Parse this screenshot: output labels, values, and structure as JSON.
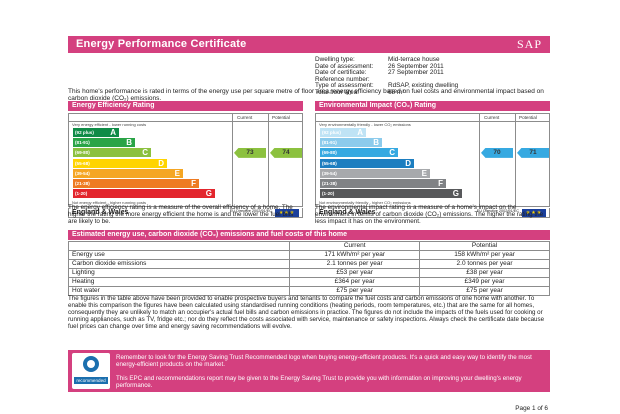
{
  "header": {
    "title": "Energy Performance Certificate",
    "logo_text": "SAP"
  },
  "address_line": "",
  "details": [
    {
      "label": "Dwelling type:",
      "value": "Mid-terrace house"
    },
    {
      "label": "Date of assessment:",
      "value": "26 September 2011"
    },
    {
      "label": "Date of certificate:",
      "value": "27 September 2011"
    },
    {
      "label": "Reference number:",
      "value": ""
    },
    {
      "label": "Type of assessment:",
      "value": "RdSAP, existing dwelling"
    },
    {
      "label": "Total floor area:",
      "value": "68 m²"
    }
  ],
  "intro": "This home's performance is rated in terms of the energy use per square metre of floor area, energy efficiency based on fuel costs and environmental impact based on carbon dioxide (CO₂) emissions.",
  "efficiency": {
    "heading": "Energy Efficiency Rating",
    "col_current": "Current",
    "col_potential": "Potential",
    "top_caption": "Very energy efficient - lower running costs",
    "bottom_caption": "Not energy efficient - higher running costs",
    "current": 73,
    "potential": 74,
    "bands": [
      {
        "range": "(92 plus)",
        "letter": "A",
        "color": "#0f8b47"
      },
      {
        "range": "(81-91)",
        "letter": "B",
        "color": "#2aa447"
      },
      {
        "range": "(69-80)",
        "letter": "C",
        "color": "#8cc13f"
      },
      {
        "range": "(55-68)",
        "letter": "D",
        "color": "#ffd400"
      },
      {
        "range": "(39-54)",
        "letter": "E",
        "color": "#f5a623"
      },
      {
        "range": "(21-38)",
        "letter": "F",
        "color": "#ee7b22"
      },
      {
        "range": "(1-20)",
        "letter": "G",
        "color": "#e3262d"
      }
    ],
    "description": "The energy efficiency rating is a measure of the overall efficiency of a home. The higher the rating the more energy efficient the home is and the lower the fuel bills are likely to be."
  },
  "environment": {
    "heading": "Environmental Impact (CO₂) Rating",
    "col_current": "Current",
    "col_potential": "Potential",
    "top_caption": "Very environmentally friendly - lower CO₂ emissions",
    "bottom_caption": "Not environmentally friendly - higher CO₂ emissions",
    "current": 70,
    "potential": 71,
    "bands": [
      {
        "range": "(92 plus)",
        "letter": "A",
        "color": "#bfe3f5"
      },
      {
        "range": "(81-91)",
        "letter": "B",
        "color": "#8ccbec"
      },
      {
        "range": "(69-80)",
        "letter": "C",
        "color": "#36a9e1"
      },
      {
        "range": "(55-68)",
        "letter": "D",
        "color": "#1d7ec0"
      },
      {
        "range": "(39-54)",
        "letter": "E",
        "color": "#a7a9ac"
      },
      {
        "range": "(21-38)",
        "letter": "F",
        "color": "#808285"
      },
      {
        "range": "(1-20)",
        "letter": "G",
        "color": "#58595b"
      }
    ],
    "description": "The environmental impact rating is a measure of a home's impact on the environment in terms of carbon dioxide (CO₂) emissions. The higher the rating the less impact it has on the environment."
  },
  "footer": {
    "country": "England & Wales",
    "eu_text": "EU Directive 2002/91/EC",
    "flag": "★★★"
  },
  "estimates": {
    "heading": "Estimated energy use, carbon dioxide (CO₂) emissions and fuel costs of this home",
    "col_current": "Current",
    "col_potential": "Potential",
    "rows": [
      {
        "label": "Energy use",
        "current": "171 kWh/m² per year",
        "potential": "158 kWh/m² per year"
      },
      {
        "label": "Carbon dioxide emissions",
        "current": "2.1 tonnes per year",
        "potential": "2.0 tonnes per year"
      },
      {
        "label": "Lighting",
        "current": "£53 per year",
        "potential": "£38 per year"
      },
      {
        "label": "Heating",
        "current": "£364 per year",
        "potential": "£349 per year"
      },
      {
        "label": "Hot water",
        "current": "£75 per year",
        "potential": "£75 per year"
      }
    ]
  },
  "paragraph": "The figures in the table above have been provided to enable prospective buyers and tenants to compare the fuel costs and carbon emissions of one home with another. To enable this comparison the figures have been calculated using standardised running conditions (heating periods, room temperatures, etc.) that are the same for all homes, consequently they are unlikely to match an occupier's actual fuel bills and carbon emissions in practice. The figures do not include the impacts of the fuels used for cooking or running appliances, such as TV, fridge etc.; nor do they reflect the costs associated with service, maintenance or safety inspections. Always check the certificate date because fuel prices can change over time and energy saving recommendations will evolve.",
  "recommended": {
    "logo_label": "recommended",
    "text1": "Remember to look for the Energy Saving Trust Recommended logo when buying energy-efficient products. It's a quick and easy way to identify the most energy-efficient products on the market.",
    "text2": "This EPC and recommendations report may be given to the Energy Saving Trust to provide you with information on improving your dwelling's energy performance."
  },
  "page_number": "Page 1 of 6"
}
